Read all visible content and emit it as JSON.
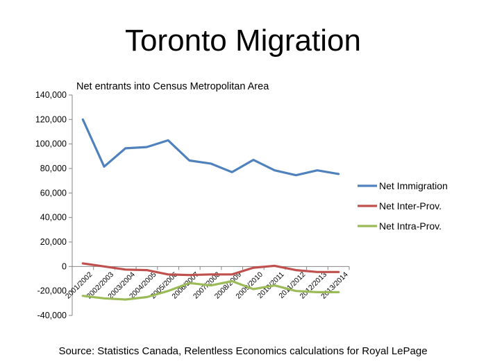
{
  "slide": {
    "title": "Toronto Migration",
    "source": "Source: Statistics Canada, Relentless Economics calculations for Royal LePage"
  },
  "chart_data": {
    "type": "line",
    "title": "Net entrants into Census Metropolitan Area",
    "categories": [
      "2001/2002",
      "2002/2003",
      "2003/2004",
      "2004/2005",
      "2005/2006",
      "2006/2007",
      "2007/2008",
      "2008/2009",
      "2009/2010",
      "2010/2011",
      "2011/2012",
      "2012/2013",
      "2013/2014"
    ],
    "series": [
      {
        "name": "Net Immigration",
        "color": "#4F81BD",
        "values": [
          120000,
          81500,
          96500,
          97500,
          103000,
          86500,
          84000,
          77000,
          87000,
          78500,
          74500,
          78500,
          75500
        ]
      },
      {
        "name": "Net Inter-Prov.",
        "color": "#C0504D",
        "values": [
          2500,
          0,
          -2500,
          -3000,
          -6500,
          -7000,
          -6500,
          -6500,
          -1000,
          500,
          -3000,
          -4500,
          -4500
        ]
      },
      {
        "name": "Net Intra-Prov.",
        "color": "#9BBB59",
        "values": [
          -24000,
          -26000,
          -27000,
          -25000,
          -20000,
          -13500,
          -15500,
          -12000,
          -18500,
          -15500,
          -20000,
          -21000,
          -21000
        ]
      }
    ],
    "ylim": [
      -40000,
      140000
    ],
    "yticks": [
      -40000,
      -20000,
      0,
      20000,
      40000,
      60000,
      80000,
      100000,
      120000,
      140000
    ],
    "ytick_labels": [
      "-40,000",
      "-20,000",
      "0",
      "20,000",
      "40,000",
      "60,000",
      "80,000",
      "100,000",
      "120,000",
      "140,000"
    ],
    "grid": false,
    "legend_position": "right"
  }
}
